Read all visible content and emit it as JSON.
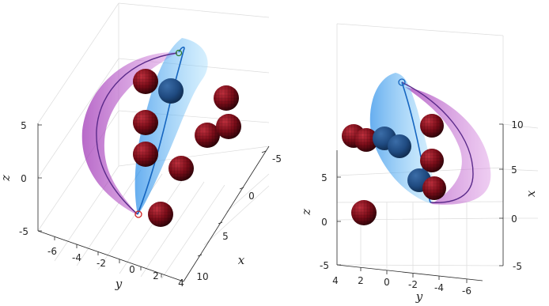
{
  "chart_data": [
    {
      "type": "3d-surface",
      "view": "left",
      "x_label": "x",
      "y_label": "y",
      "z_label": "z",
      "x_ticks": [
        "-5",
        "0",
        "5",
        "10"
      ],
      "y_ticks": [
        "-6",
        "-4",
        "-2",
        "0",
        "2",
        "4"
      ],
      "z_ticks": [
        "5",
        "0",
        "-5"
      ],
      "grid": true,
      "series": [
        {
          "kind": "magenta-tube",
          "color": "#b040c0"
        },
        {
          "kind": "blue-tube",
          "color": "#2f9cf0"
        },
        {
          "kind": "trajectory",
          "color": "#1560b0"
        },
        {
          "kind": "obstacle-spheres",
          "color": "#7a0c18",
          "count": 12
        }
      ]
    },
    {
      "type": "3d-surface",
      "view": "right",
      "x_label": "x",
      "y_label": "y",
      "z_label": "z",
      "x_ticks": [
        "10",
        "5",
        "0",
        "-5"
      ],
      "y_ticks": [
        "4",
        "2",
        "0",
        "-2",
        "-4",
        "-6"
      ],
      "z_ticks": [
        "5",
        "0",
        "-5"
      ],
      "grid": true,
      "series": [
        {
          "kind": "magenta-tube",
          "color": "#b040c0"
        },
        {
          "kind": "blue-tube",
          "color": "#2f9cf0"
        },
        {
          "kind": "trajectory",
          "color": "#1560b0"
        },
        {
          "kind": "obstacle-spheres",
          "color": "#7a0c18",
          "count": 11
        }
      ]
    }
  ]
}
